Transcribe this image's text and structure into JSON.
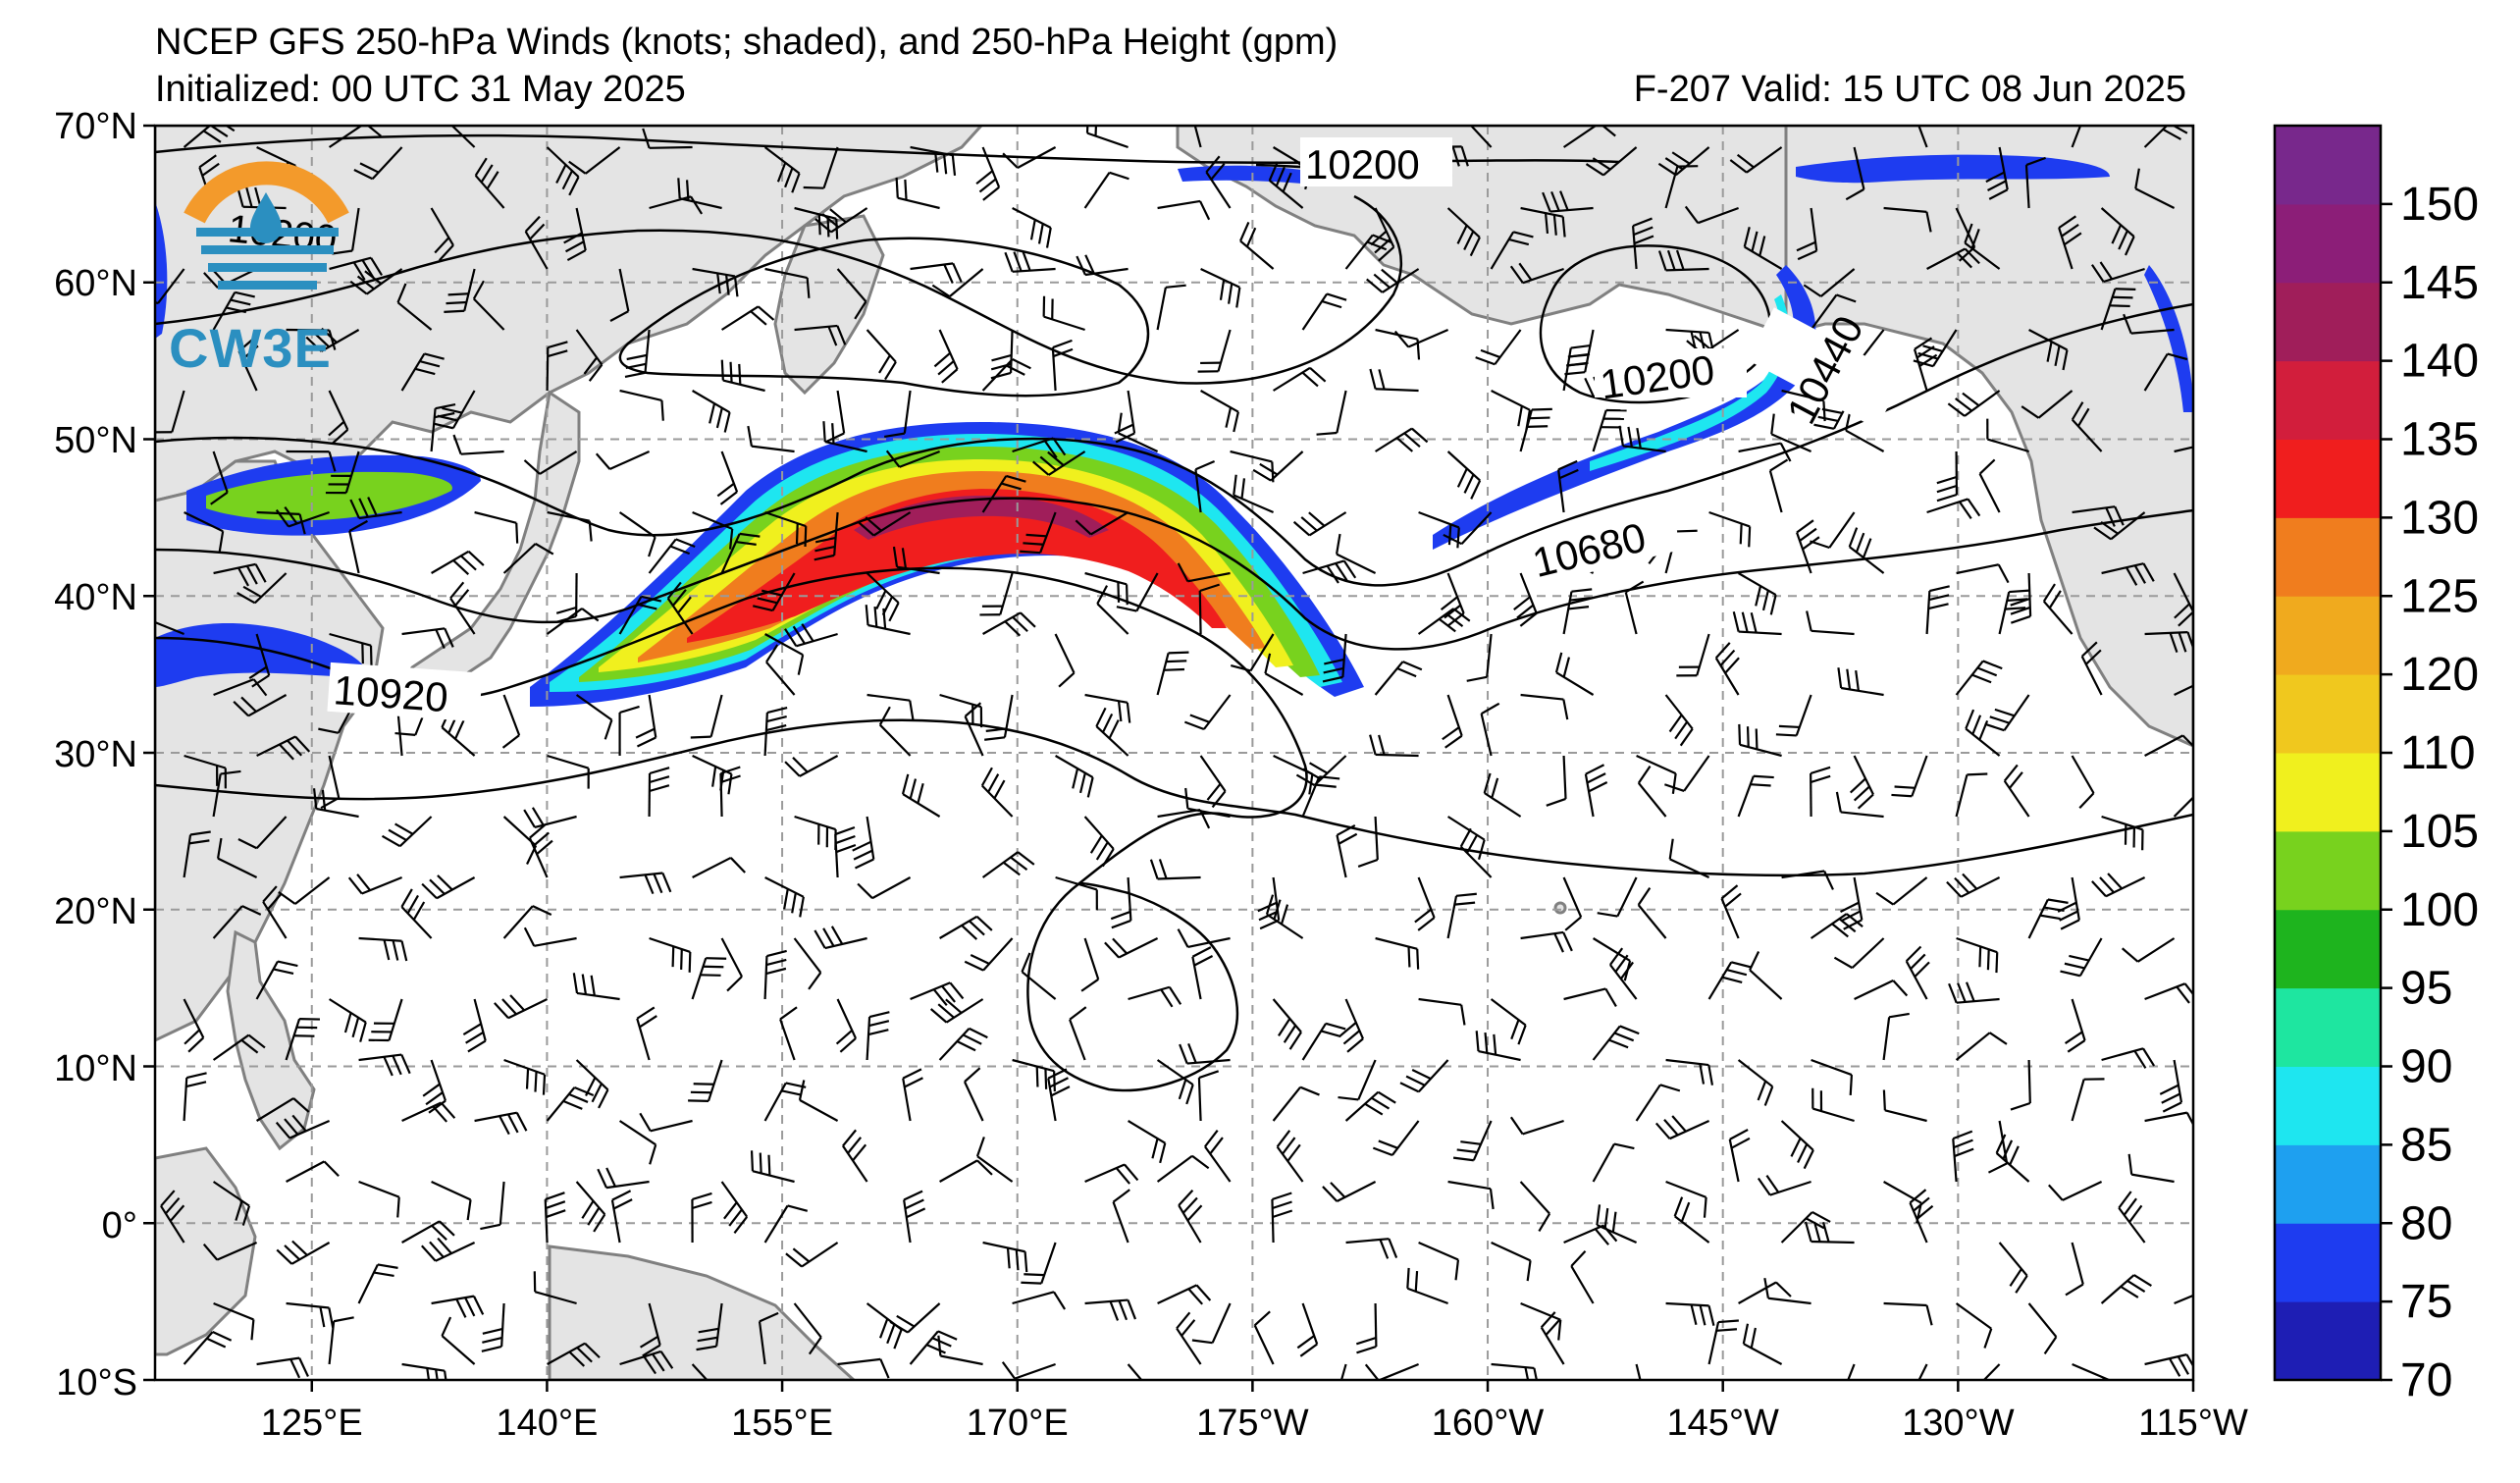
{
  "header": {
    "title": "NCEP GFS 250-hPa Winds (knots; shaded), and 250-hPa Height (gpm)",
    "initialized": "Initialized: 00 UTC 31 May 2025",
    "valid": "F-207  Valid: 15 UTC 08 Jun 2025"
  },
  "logo": {
    "text": "CW3E",
    "ring_color": "#f39a2b",
    "wave_color": "#2b8fc0",
    "icon": "cw3e-logo-icon"
  },
  "map": {
    "lon_labels": [
      "125°E",
      "140°E",
      "155°E",
      "170°E",
      "175°W",
      "160°W",
      "145°W",
      "130°W",
      "115°W"
    ],
    "lat_labels": [
      "70°N",
      "60°N",
      "50°N",
      "40°N",
      "30°N",
      "20°N",
      "10°N",
      "0°",
      "10°S"
    ],
    "contour_labels": [
      "10200",
      "10200",
      "10440",
      "10680",
      "10920",
      "10200"
    ],
    "land_color": "#e4e4e4",
    "coast_color": "#808080",
    "grid_style": "dashed"
  },
  "colorbar": {
    "ticks": [
      "70",
      "75",
      "80",
      "85",
      "90",
      "95",
      "100",
      "105",
      "110",
      "120",
      "125",
      "130",
      "135",
      "140",
      "145",
      "150"
    ],
    "colors": [
      "#1e1eb4",
      "#1e3cf0",
      "#1ea0f0",
      "#1ee6f0",
      "#1ee6a0",
      "#1eb41e",
      "#78d21e",
      "#f0f01e",
      "#f0c81e",
      "#f0aa1e",
      "#f07d1e",
      "#f01e1e",
      "#d21e3c",
      "#a01e5a",
      "#8c1e78",
      "#78288c"
    ]
  }
}
